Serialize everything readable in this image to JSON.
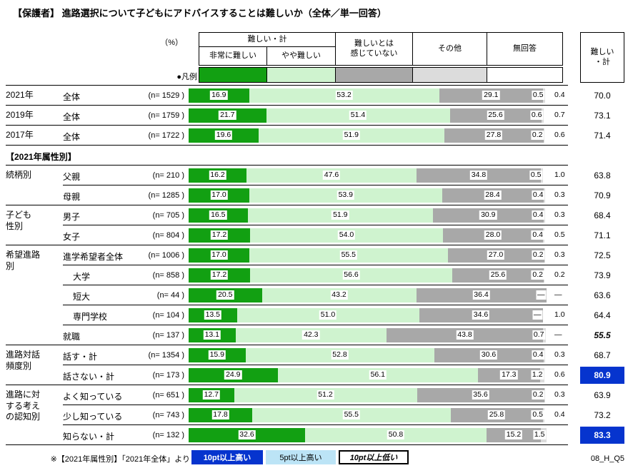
{
  "title": "【保護者】 進路選択について子どもにアドバイスすることは難しいか（全体／単一回答）",
  "doc_code": "08_H_Q5",
  "colors": {
    "seg_very": "#12A012",
    "seg_somewhat": "#CFF3CF",
    "seg_not": "#A8A8A8",
    "seg_other": "#DCDCDC",
    "seg_none": "#FFFFFF",
    "highlight_high": "#0634CE",
    "highlight_mid": "#BCE4F6"
  },
  "header": {
    "pct_label": "（%）",
    "difficult_total_label": "難しい・計",
    "col_very": "非常に難しい",
    "col_somewhat": "やや難しい",
    "col_not": "難しいとは\n感じていない",
    "col_other": "その他",
    "col_none": "無回答",
    "legend_label": "●凡例",
    "total_col_label": "難しい\n・計"
  },
  "notes": {
    "prefix": "※【2021年属性別】「2021年全体」より",
    "high": "10pt以上高い",
    "mid": "5pt以上高い",
    "low": "10pt以上低い"
  },
  "chart_data": {
    "type": "bar",
    "stacked": true,
    "unit": "%",
    "xlim": [
      0,
      100
    ],
    "title": "【保護者】 進路選択について子どもにアドバイスすることは難しいか（全体／単一回答）",
    "legend": [
      "非常に難しい",
      "やや難しい",
      "難しいとは感じていない",
      "その他",
      "無回答"
    ],
    "total_label": "難しい・計",
    "rows": [
      {
        "group": "2021年",
        "span": 1,
        "label": "全体",
        "n": "(n= 1529 )",
        "values": [
          "16.9",
          "53.2",
          "29.1",
          "0.5",
          "0.4"
        ],
        "total": "70.0",
        "style": "normal"
      },
      {
        "group": "2019年",
        "span": 1,
        "label": "全体",
        "n": "(n= 1759 )",
        "values": [
          "21.7",
          "51.4",
          "25.6",
          "0.6",
          "0.7"
        ],
        "total": "73.1",
        "style": "normal"
      },
      {
        "group": "2017年",
        "span": 1,
        "label": "全体",
        "n": "(n= 1722 )",
        "values": [
          "19.6",
          "51.9",
          "27.8",
          "0.2",
          "0.6"
        ],
        "total": "71.4",
        "style": "normal"
      },
      {
        "section": "【2021年属性別】"
      },
      {
        "group": "続柄別",
        "span": 2,
        "label": "父親",
        "n": "(n= 210 )",
        "values": [
          "16.2",
          "47.6",
          "34.8",
          "0.5",
          "1.0"
        ],
        "total": "63.8",
        "style": "normal"
      },
      {
        "label": "母親",
        "n": "(n= 1285 )",
        "values": [
          "17.0",
          "53.9",
          "28.4",
          "0.4",
          "0.3"
        ],
        "total": "70.9",
        "style": "normal"
      },
      {
        "group": "子ども\n性別",
        "span": 2,
        "label": "男子",
        "n": "(n= 705 )",
        "values": [
          "16.5",
          "51.9",
          "30.9",
          "0.4",
          "0.3"
        ],
        "total": "68.4",
        "style": "normal"
      },
      {
        "label": "女子",
        "n": "(n= 804 )",
        "values": [
          "17.2",
          "54.0",
          "28.0",
          "0.4",
          "0.5"
        ],
        "total": "71.1",
        "style": "normal"
      },
      {
        "group": "希望進路\n別",
        "span": 5,
        "label": "進学希望者全体",
        "n": "(n= 1006 )",
        "values": [
          "17.0",
          "55.5",
          "27.0",
          "0.2",
          "0.3"
        ],
        "total": "72.5",
        "style": "normal"
      },
      {
        "label": "大学",
        "indent": true,
        "n": "(n= 858 )",
        "values": [
          "17.2",
          "56.6",
          "25.6",
          "0.2",
          "0.2"
        ],
        "total": "73.9",
        "style": "normal"
      },
      {
        "label": "短大",
        "indent": true,
        "n": "(n= 44 )",
        "values": [
          "20.5",
          "43.2",
          "36.4",
          "—",
          "—"
        ],
        "total": "63.6",
        "style": "normal"
      },
      {
        "label": "専門学校",
        "indent": true,
        "n": "(n= 104 )",
        "values": [
          "13.5",
          "51.0",
          "34.6",
          "—",
          "1.0"
        ],
        "total": "64.4",
        "style": "normal"
      },
      {
        "label": "就職",
        "n": "(n= 137 )",
        "values": [
          "13.1",
          "42.3",
          "43.8",
          "0.7",
          "—"
        ],
        "total": "55.5",
        "style": "low"
      },
      {
        "group": "進路対話\n頻度別",
        "span": 2,
        "label": "話す・計",
        "n": "(n= 1354 )",
        "values": [
          "15.9",
          "52.8",
          "30.6",
          "0.4",
          "0.3"
        ],
        "total": "68.7",
        "style": "normal"
      },
      {
        "label": "話さない・計",
        "n": "(n= 173 )",
        "values": [
          "24.9",
          "56.1",
          "17.3",
          "1.2",
          "0.6"
        ],
        "total": "80.9",
        "style": "high"
      },
      {
        "group": "進路に対\nする考え\nの認知別",
        "span": 3,
        "label": "よく知っている",
        "n": "(n= 651 )",
        "values": [
          "12.7",
          "51.2",
          "35.6",
          "0.2",
          "0.3"
        ],
        "total": "63.9",
        "style": "normal"
      },
      {
        "label": "少し知っている",
        "n": "(n= 743 )",
        "values": [
          "17.8",
          "55.5",
          "25.8",
          "0.5",
          "0.4"
        ],
        "total": "73.2",
        "style": "normal"
      },
      {
        "label": "知らない・計",
        "n": "(n= 132 )",
        "values": [
          "32.6",
          "50.8",
          "15.2",
          "1.5",
          ""
        ],
        "total": "83.3",
        "style": "high"
      }
    ]
  }
}
